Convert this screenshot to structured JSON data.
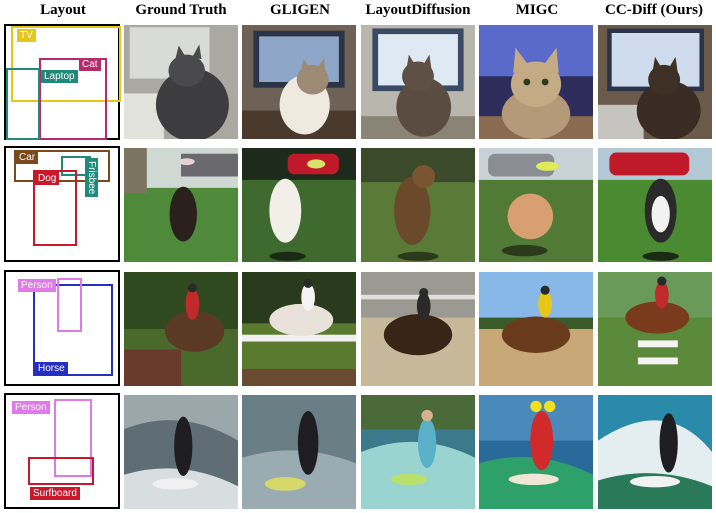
{
  "headers": {
    "layout": "Layout",
    "ground_truth": "Ground Truth",
    "gligen": "GLIGEN",
    "layoutdiffusion": "LayoutDiffusion",
    "migc": "MIGC",
    "ccdiff": "CC-Diff (Ours)"
  },
  "rows": [
    {
      "labels": {
        "tv": "TV",
        "cat": "Cat",
        "laptop": "Laptop"
      },
      "colors": {
        "tv": "#e6c619",
        "cat": "#b52a6b",
        "laptop": "#1f8a7a"
      }
    },
    {
      "labels": {
        "car": "Car",
        "dog": "Dog",
        "frisbee": "Frisbee"
      },
      "colors": {
        "car": "#7a4a1c",
        "dog": "#c8182c",
        "frisbee": "#1f8a7a"
      }
    },
    {
      "labels": {
        "person": "Person",
        "horse": "Horse"
      },
      "colors": {
        "person": "#e07ae8",
        "horse": "#2630c0"
      }
    },
    {
      "labels": {
        "person": "Person",
        "surfboard": "Surfboard"
      },
      "colors": {
        "person": "#e07ae8",
        "surfboard": "#c8182c"
      }
    }
  ]
}
